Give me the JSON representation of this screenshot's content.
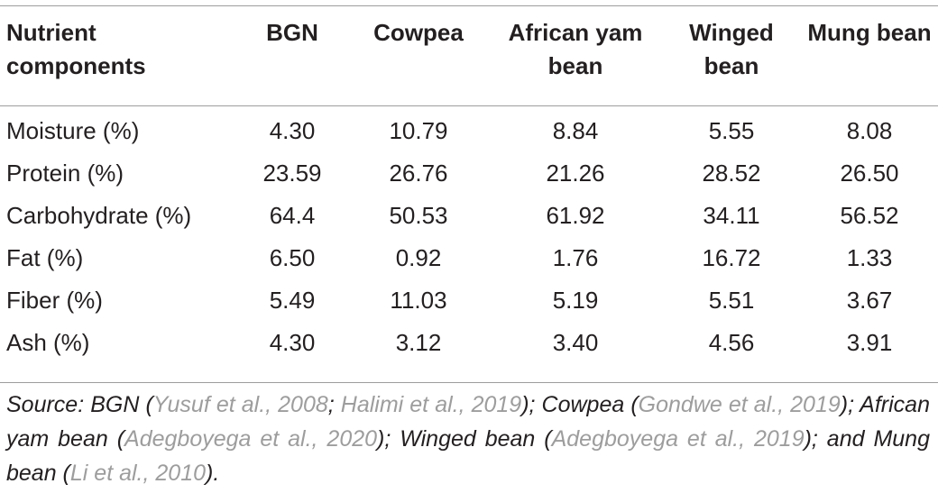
{
  "table": {
    "headers": [
      "Nutrient components",
      "BGN",
      "Cowpea",
      "African yam bean",
      "Winged bean",
      "Mung bean"
    ],
    "rows": [
      {
        "label": "Moisture (%)",
        "values": [
          "4.30",
          "10.79",
          "8.84",
          "5.55",
          "8.08"
        ]
      },
      {
        "label": "Protein (%)",
        "values": [
          "23.59",
          "26.76",
          "21.26",
          "28.52",
          "26.50"
        ]
      },
      {
        "label": "Carbohydrate (%)",
        "values": [
          "64.4",
          "50.53",
          "61.92",
          "34.11",
          "56.52"
        ]
      },
      {
        "label": "Fat (%)",
        "values": [
          "6.50",
          "0.92",
          "1.76",
          "16.72",
          "1.33"
        ]
      },
      {
        "label": "Fiber (%)",
        "values": [
          "5.49",
          "11.03",
          "5.19",
          "5.51",
          "3.67"
        ]
      },
      {
        "label": "Ash (%)",
        "values": [
          "4.30",
          "3.12",
          "3.40",
          "4.56",
          "3.91"
        ]
      }
    ]
  },
  "source": {
    "prefix": "Source: BGN (",
    "ref1": "Yusuf et al., 2008",
    "sep1": "; ",
    "ref2": "Halimi et al., 2019",
    "mid1": "); Cowpea (",
    "ref3": "Gondwe et al., 2019",
    "mid2": "); African yam bean (",
    "ref4": "Adegboyega et al., 2020",
    "mid3": "); Winged bean (",
    "ref5": "Adegboyega et al., 2019",
    "mid4": "); and Mung bean (",
    "ref6": "Li et al., 2010",
    "suffix": ")."
  }
}
